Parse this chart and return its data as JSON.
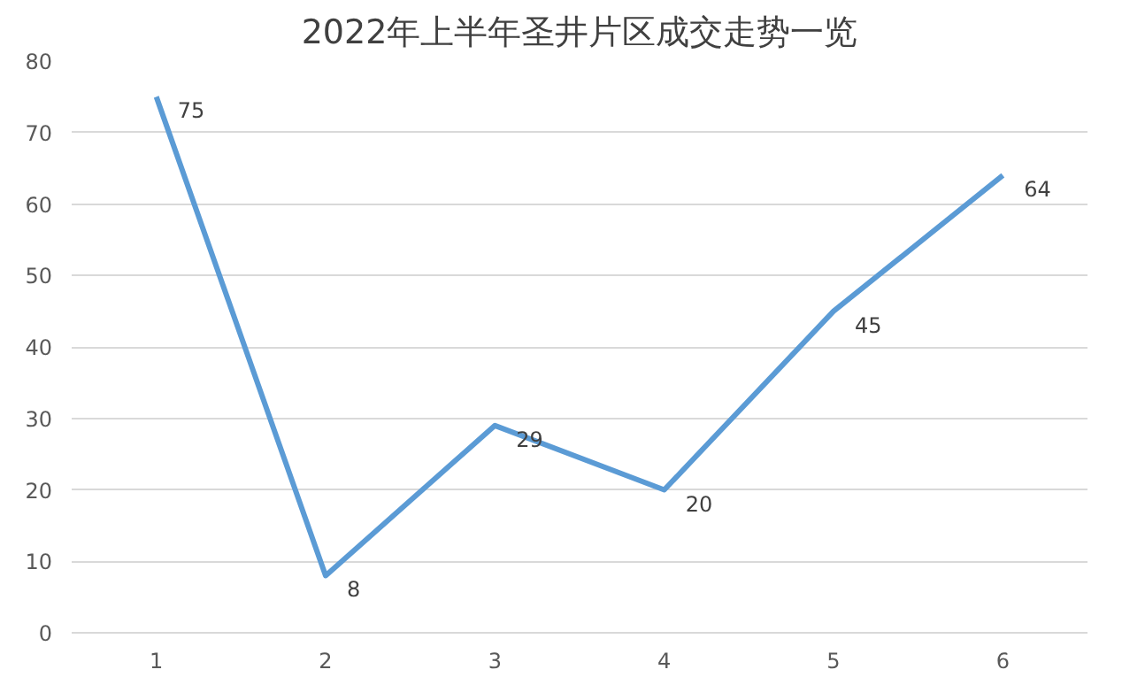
{
  "chart_data": {
    "type": "line",
    "title": "2022年上半年圣井片区成交走势一览",
    "categories": [
      "1",
      "2",
      "3",
      "4",
      "5",
      "6"
    ],
    "series": [
      {
        "color": "#5b9bd5",
        "values": [
          75,
          8,
          29,
          20,
          45,
          64
        ]
      }
    ],
    "ylim": [
      0,
      80
    ],
    "yticks": [
      0,
      10,
      20,
      30,
      40,
      50,
      60,
      70,
      80
    ],
    "grid": "y",
    "data_labels": true,
    "marker": "none",
    "line_style": "solid"
  }
}
